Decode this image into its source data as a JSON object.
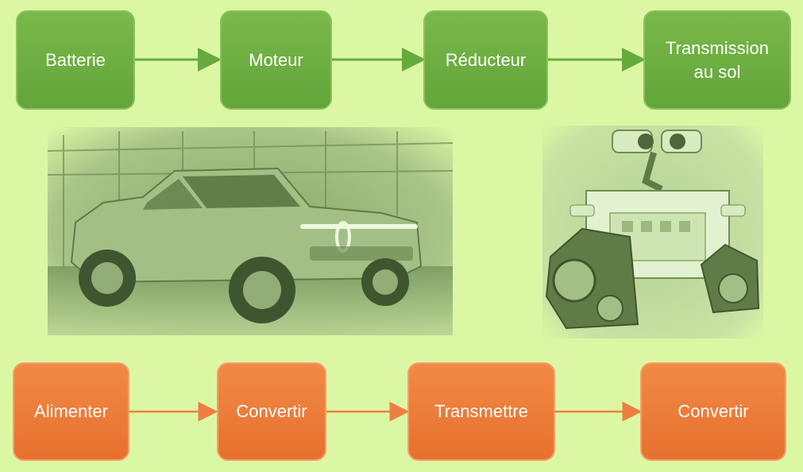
{
  "top_flow": [
    {
      "label": "Batterie"
    },
    {
      "label": "Moteur"
    },
    {
      "label": "Réducteur"
    },
    {
      "label": "Transmission au sol"
    }
  ],
  "bottom_flow": [
    {
      "label": "Alimenter"
    },
    {
      "label": "Convertir"
    },
    {
      "label": "Transmettre"
    },
    {
      "label": "Convertir"
    }
  ],
  "images": {
    "left": "pickup-truck-photo",
    "right": "tracked-robot-photo"
  },
  "colors": {
    "background": "#dcf7a3",
    "green_box": "#6aad40",
    "orange_box": "#ec7a38",
    "green_arrow": "#66aa3c",
    "orange_arrow": "#ee7f40"
  }
}
